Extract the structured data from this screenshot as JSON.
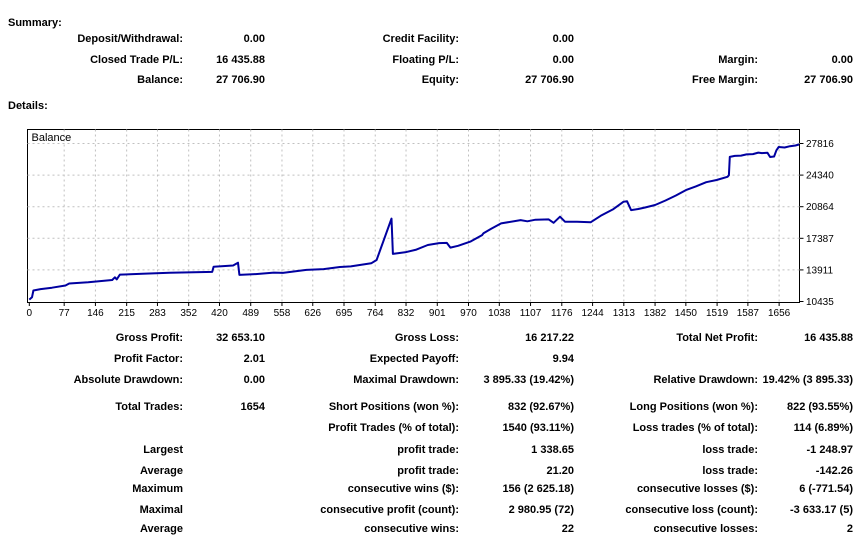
{
  "summary": {
    "title": "Summary:",
    "rows": [
      {
        "cells": [
          "Deposit/Withdrawal:",
          "0.00",
          "Credit Facility:",
          "0.00",
          "",
          ""
        ]
      },
      {
        "cells": [
          "Closed Trade P/L:",
          "16 435.88",
          "Floating P/L:",
          "0.00",
          "Margin:",
          "0.00"
        ]
      },
      {
        "cells": [
          "Balance:",
          "27 706.90",
          "Equity:",
          "27 706.90",
          "Free Margin:",
          "27 706.90"
        ]
      }
    ]
  },
  "details": {
    "title": "Details:",
    "rows": [
      {
        "cells": [
          "Gross Profit:",
          "32 653.10",
          "Gross Loss:",
          "16 217.22",
          "Total Net Profit:",
          "16 435.88"
        ]
      },
      {
        "cells": [
          "Profit Factor:",
          "2.01",
          "Expected Payoff:",
          "9.94",
          "",
          ""
        ]
      },
      {
        "cells": [
          "Absolute Drawdown:",
          "0.00",
          "Maximal Drawdown:",
          "3 895.33 (19.42%)",
          "Relative Drawdown:",
          "19.42% (3 895.33)"
        ]
      },
      {
        "cells": [
          "Total Trades:",
          "1654",
          "Short Positions (won %):",
          "832 (92.67%)",
          "Long Positions (won %):",
          "822 (93.55%)"
        ]
      },
      {
        "cells": [
          "",
          "",
          "Profit Trades (% of total):",
          "1540 (93.11%)",
          "Loss trades (% of total):",
          "114 (6.89%)"
        ]
      },
      {
        "cells": [
          "Largest",
          "",
          "profit trade:",
          "1 338.65",
          "loss trade:",
          "-1 248.97"
        ]
      },
      {
        "cells": [
          "Average",
          "",
          "profit trade:",
          "21.20",
          "loss trade:",
          "-142.26"
        ]
      },
      {
        "cells": [
          "Maximum",
          "",
          "consecutive wins ($):",
          "156 (2 625.18)",
          "consecutive losses ($):",
          "6 (-771.54)"
        ]
      },
      {
        "cells": [
          "Maximal",
          "",
          "consecutive profit (count):",
          "2 980.95 (72)",
          "consecutive loss (count):",
          "-3 633.17 (5)"
        ]
      },
      {
        "cells": [
          "Average",
          "",
          "consecutive wins:",
          "22",
          "consecutive losses:",
          "2"
        ]
      }
    ]
  },
  "chart_data": {
    "type": "line",
    "title": "Balance",
    "legend_position": "top-left-inside",
    "grid": "dashed",
    "line_color": "#0000A0",
    "grid_color": "#C0C0C0",
    "x_ticks": [
      0,
      77,
      146,
      215,
      283,
      352,
      420,
      489,
      558,
      626,
      695,
      764,
      832,
      901,
      970,
      1038,
      1107,
      1176,
      1244,
      1313,
      1382,
      1450,
      1519,
      1587,
      1656
    ],
    "y_ticks": [
      10435,
      13911,
      17387,
      20864,
      24340,
      27816
    ],
    "xlim": [
      -4,
      1701
    ],
    "ylim": [
      10326,
      29356
    ],
    "series": [
      {
        "name": "Balance",
        "points": [
          [
            0,
            10650
          ],
          [
            6,
            10900
          ],
          [
            9,
            11650
          ],
          [
            25,
            11800
          ],
          [
            50,
            11950
          ],
          [
            80,
            12200
          ],
          [
            88,
            12420
          ],
          [
            130,
            12550
          ],
          [
            183,
            12800
          ],
          [
            189,
            13100
          ],
          [
            193,
            12870
          ],
          [
            200,
            13390
          ],
          [
            250,
            13480
          ],
          [
            310,
            13600
          ],
          [
            404,
            13690
          ],
          [
            407,
            14260
          ],
          [
            450,
            14400
          ],
          [
            461,
            14700
          ],
          [
            464,
            13360
          ],
          [
            500,
            13450
          ],
          [
            540,
            13610
          ],
          [
            560,
            13580
          ],
          [
            612,
            13910
          ],
          [
            650,
            14000
          ],
          [
            686,
            14230
          ],
          [
            710,
            14300
          ],
          [
            755,
            14640
          ],
          [
            767,
            15000
          ],
          [
            800,
            19560
          ],
          [
            803,
            15670
          ],
          [
            830,
            15850
          ],
          [
            855,
            16150
          ],
          [
            880,
            16650
          ],
          [
            905,
            16860
          ],
          [
            922,
            16880
          ],
          [
            930,
            16360
          ],
          [
            947,
            16560
          ],
          [
            975,
            17050
          ],
          [
            1000,
            17740
          ],
          [
            1003,
            17950
          ],
          [
            1020,
            18440
          ],
          [
            1042,
            19030
          ],
          [
            1085,
            19390
          ],
          [
            1100,
            19260
          ],
          [
            1118,
            19430
          ],
          [
            1147,
            19470
          ],
          [
            1158,
            19090
          ],
          [
            1172,
            19760
          ],
          [
            1183,
            19210
          ],
          [
            1210,
            19210
          ],
          [
            1240,
            19160
          ],
          [
            1262,
            19860
          ],
          [
            1290,
            20600
          ],
          [
            1312,
            21400
          ],
          [
            1320,
            21470
          ],
          [
            1329,
            20490
          ],
          [
            1345,
            20610
          ],
          [
            1360,
            20780
          ],
          [
            1382,
            21050
          ],
          [
            1405,
            21550
          ],
          [
            1428,
            22100
          ],
          [
            1450,
            22690
          ],
          [
            1472,
            23100
          ],
          [
            1495,
            23560
          ],
          [
            1518,
            23800
          ],
          [
            1542,
            24150
          ],
          [
            1545,
            24330
          ],
          [
            1547,
            26340
          ],
          [
            1558,
            26450
          ],
          [
            1572,
            26480
          ],
          [
            1584,
            26620
          ],
          [
            1598,
            26650
          ],
          [
            1610,
            26820
          ],
          [
            1618,
            26760
          ],
          [
            1630,
            26800
          ],
          [
            1636,
            26330
          ],
          [
            1645,
            26390
          ],
          [
            1650,
            27070
          ],
          [
            1655,
            27430
          ],
          [
            1668,
            27380
          ],
          [
            1680,
            27520
          ],
          [
            1692,
            27600
          ],
          [
            1700,
            27707
          ]
        ]
      }
    ]
  }
}
